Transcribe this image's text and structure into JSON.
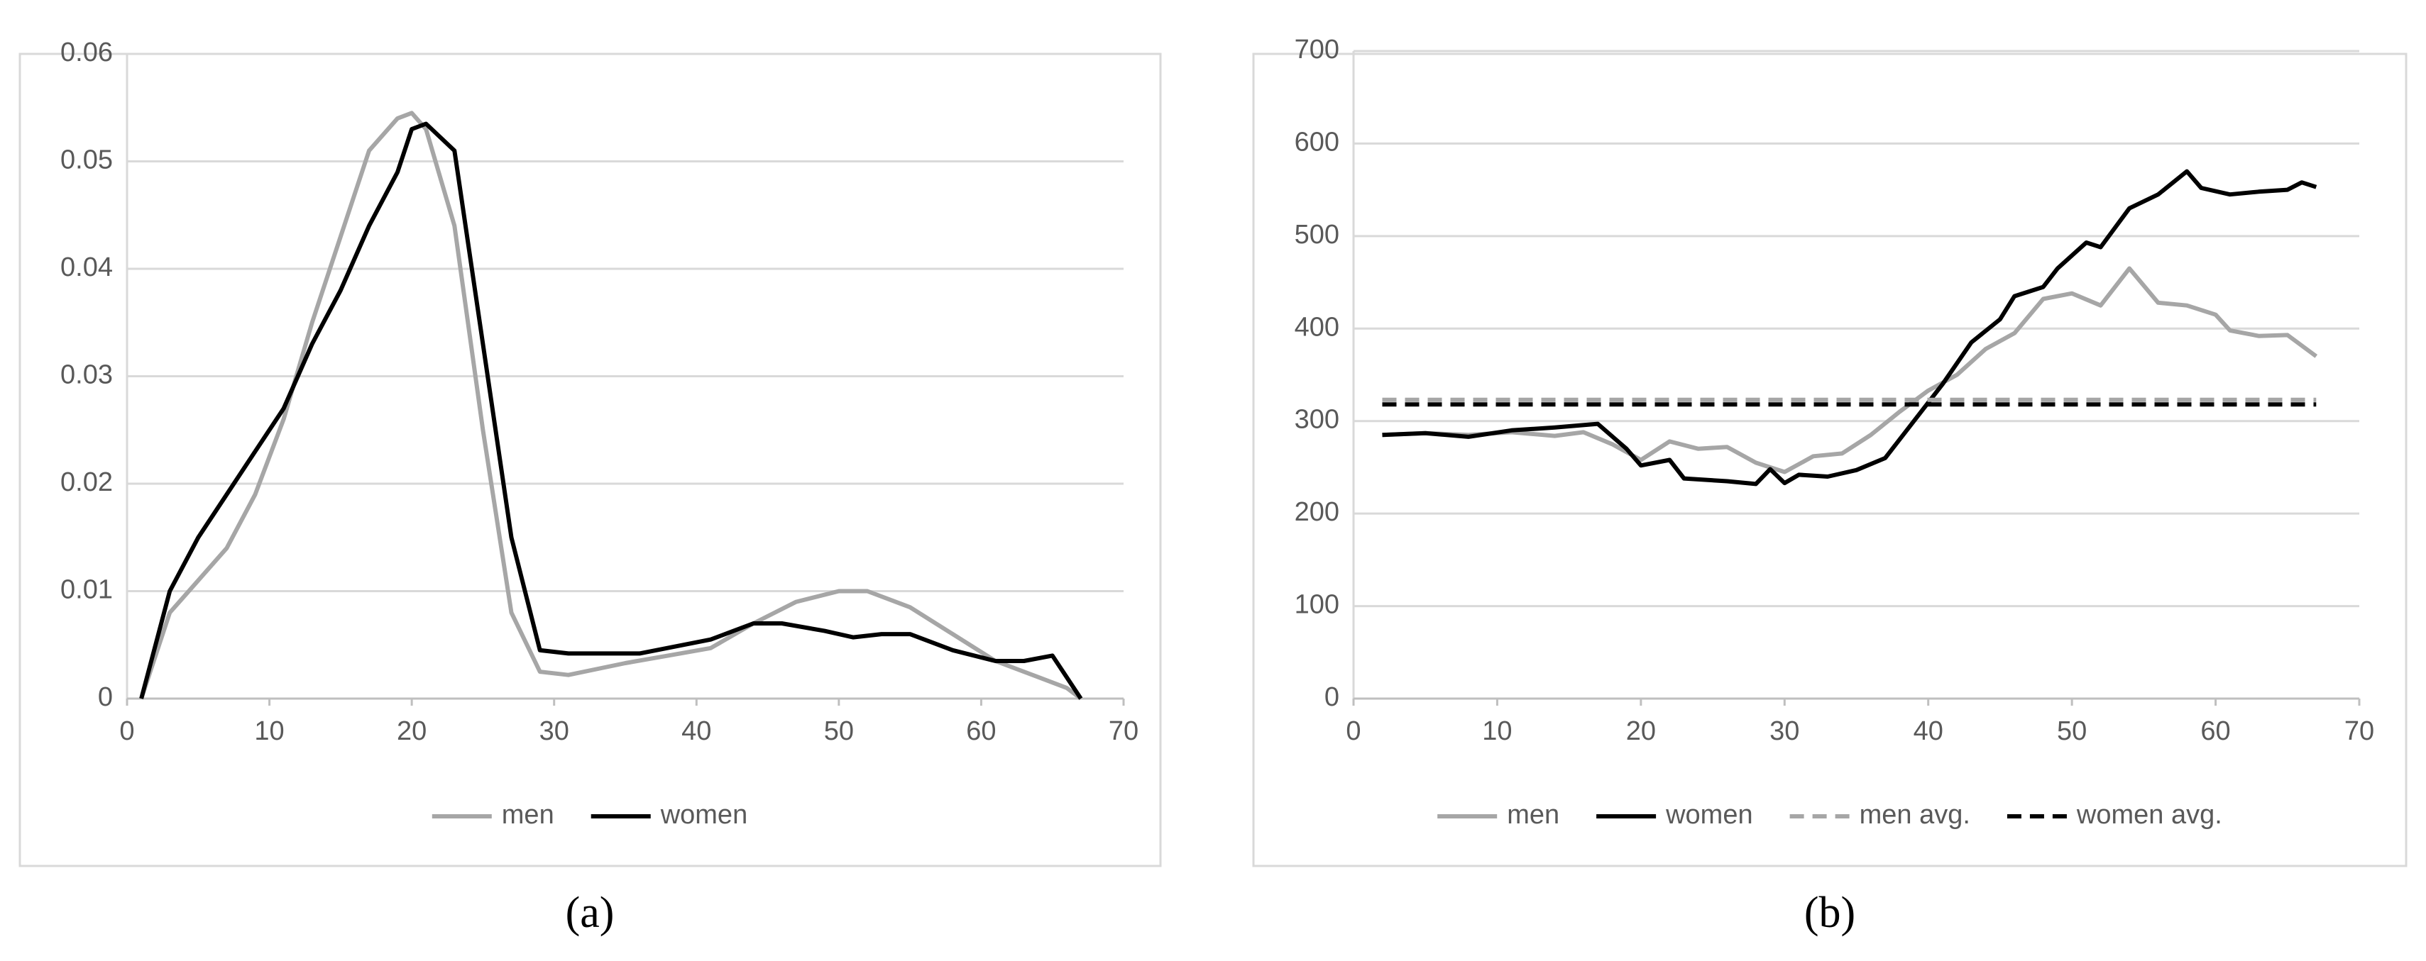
{
  "chart_data": [
    {
      "type": "line",
      "panel_label": "(a)",
      "xlim": [
        0,
        70
      ],
      "xticks": [
        0,
        10,
        20,
        30,
        40,
        50,
        60,
        70
      ],
      "ylim": [
        0,
        0.06
      ],
      "yticks": [
        0,
        0.01,
        0.02,
        0.03,
        0.04,
        0.05,
        0.06
      ],
      "grid": true,
      "series": [
        {
          "name": "men",
          "color": "#a6a6a6",
          "dash": false,
          "x": [
            1,
            3,
            5,
            7,
            9,
            11,
            13,
            15,
            17,
            19,
            20,
            21,
            23,
            25,
            27,
            29,
            31,
            35,
            38,
            41,
            44,
            47,
            50,
            52,
            55,
            58,
            61,
            64,
            66,
            67
          ],
          "values": [
            0,
            0.008,
            0.011,
            0.014,
            0.019,
            0.026,
            0.035,
            0.043,
            0.051,
            0.054,
            0.0545,
            0.053,
            0.044,
            0.025,
            0.008,
            0.0025,
            0.0022,
            0.0033,
            0.004,
            0.0047,
            0.007,
            0.009,
            0.01,
            0.01,
            0.0085,
            0.006,
            0.0035,
            0.002,
            0.001,
            0
          ]
        },
        {
          "name": "women",
          "color": "#000000",
          "dash": false,
          "x": [
            1,
            3,
            5,
            7,
            9,
            11,
            13,
            15,
            17,
            19,
            20,
            21,
            23,
            25,
            27,
            29,
            31,
            36,
            41,
            44,
            46,
            49,
            51,
            53,
            55,
            58,
            61,
            63,
            65,
            67
          ],
          "values": [
            0,
            0.01,
            0.015,
            0.019,
            0.023,
            0.027,
            0.033,
            0.038,
            0.044,
            0.049,
            0.053,
            0.0535,
            0.051,
            0.033,
            0.015,
            0.0045,
            0.0042,
            0.0042,
            0.0055,
            0.007,
            0.007,
            0.0063,
            0.0057,
            0.006,
            0.006,
            0.0045,
            0.0035,
            0.0035,
            0.004,
            0
          ]
        }
      ]
    },
    {
      "type": "line",
      "panel_label": "(b)",
      "xlim": [
        0,
        70
      ],
      "xticks": [
        0,
        10,
        20,
        30,
        40,
        50,
        60,
        70
      ],
      "ylim": [
        0,
        700
      ],
      "yticks": [
        0,
        100,
        200,
        300,
        400,
        500,
        600,
        700
      ],
      "grid": true,
      "series": [
        {
          "name": "men",
          "color": "#a6a6a6",
          "dash": false,
          "x": [
            2,
            5,
            8,
            11,
            14,
            16,
            18,
            20,
            22,
            24,
            26,
            28,
            30,
            32,
            34,
            36,
            38,
            40,
            42,
            44,
            46,
            48,
            50,
            52,
            54,
            56,
            58,
            60,
            61,
            63,
            65,
            67
          ],
          "values": [
            285,
            287,
            285,
            288,
            284,
            288,
            275,
            258,
            278,
            270,
            272,
            255,
            245,
            262,
            265,
            285,
            310,
            333,
            350,
            378,
            395,
            432,
            438,
            425,
            465,
            428,
            425,
            415,
            398,
            392,
            393,
            370
          ]
        },
        {
          "name": "women",
          "color": "#000000",
          "dash": false,
          "x": [
            2,
            5,
            8,
            11,
            14,
            17,
            19,
            20,
            22,
            23,
            26,
            28,
            29,
            30,
            31,
            33,
            35,
            37,
            39,
            41,
            43,
            45,
            46,
            48,
            49,
            51,
            52,
            54,
            56,
            58,
            59,
            61,
            63,
            65,
            66,
            67
          ],
          "values": [
            285,
            287,
            283,
            290,
            293,
            297,
            270,
            252,
            258,
            238,
            235,
            232,
            248,
            233,
            242,
            240,
            247,
            260,
            300,
            340,
            385,
            410,
            435,
            445,
            465,
            493,
            488,
            530,
            545,
            570,
            552,
            545,
            548,
            550,
            558,
            553
          ]
        },
        {
          "name": "men avg.",
          "color": "#a6a6a6",
          "dash": true,
          "x": [
            2,
            67
          ],
          "values": [
            323,
            323
          ]
        },
        {
          "name": "women avg.",
          "color": "#000000",
          "dash": true,
          "x": [
            2,
            67
          ],
          "values": [
            318,
            318
          ]
        }
      ]
    }
  ]
}
